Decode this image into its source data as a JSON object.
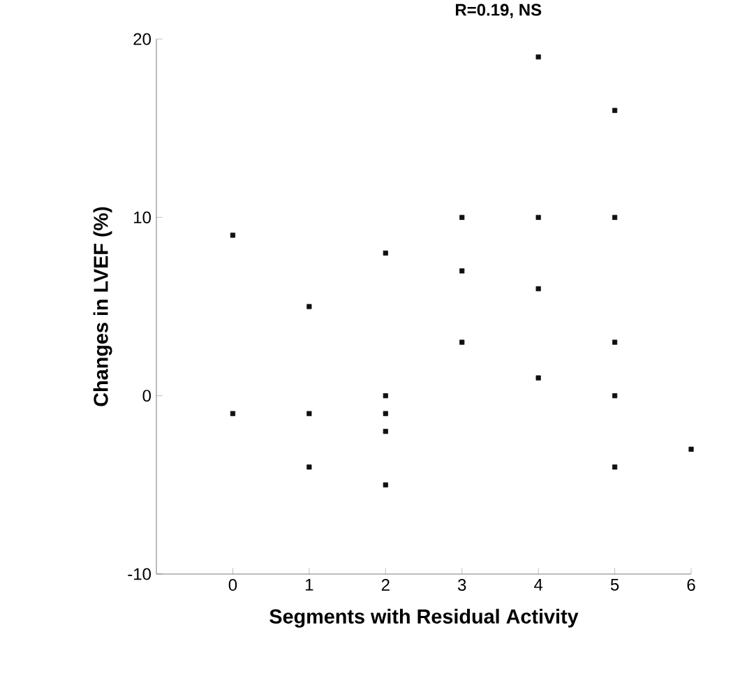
{
  "chart_data": {
    "type": "scatter",
    "xlabel": "Segments with Residual Activity",
    "ylabel": "Changes in LVEF (%)",
    "annotations": [
      "R=0.19, NS"
    ],
    "x": [
      0,
      0,
      1,
      1,
      1,
      2,
      2,
      2,
      2,
      2,
      3,
      3,
      3,
      4,
      4,
      4,
      4,
      5,
      5,
      5,
      5,
      5,
      6
    ],
    "values": [
      9,
      -1,
      5,
      -1,
      -4,
      8,
      0,
      -1,
      -2,
      -5,
      10,
      7,
      3,
      19,
      10,
      6,
      1,
      16,
      10,
      3,
      0,
      -4,
      -3
    ],
    "color": "#111111",
    "marker": "square",
    "grid": false,
    "xlim": [
      -1,
      6
    ],
    "xticks": [
      0,
      1,
      2,
      3,
      4,
      5,
      6
    ],
    "ylim": [
      -10,
      20
    ],
    "yticks": [
      -10,
      0,
      10,
      20
    ]
  }
}
